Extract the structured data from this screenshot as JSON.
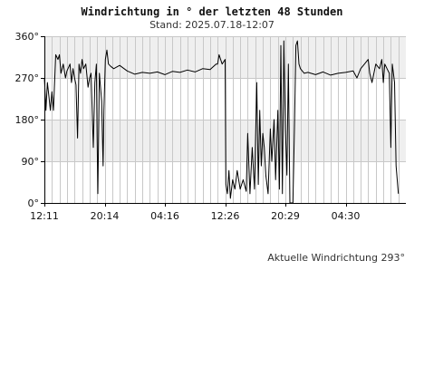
{
  "header": {
    "title": "Windrichtung in ° der letzten 48 Stunden",
    "subtitle": "Stand: 2025.07.18-12:07"
  },
  "footer": {
    "current_label": "Aktuelle Windrichtung 293°"
  },
  "colors": {
    "band": "#efefef",
    "grid": "#c8c8c8",
    "axis": "#000000",
    "line": "#000000",
    "background": "#ffffff"
  },
  "chart_data": {
    "type": "line",
    "title": "Windrichtung in ° der letzten 48 Stunden",
    "xlabel": "",
    "ylabel": "",
    "xlim": [
      0,
      48
    ],
    "ylim": [
      0,
      360
    ],
    "grid": true,
    "y_ticks": [
      {
        "value": 0,
        "label": "0°"
      },
      {
        "value": 90,
        "label": "90°"
      },
      {
        "value": 180,
        "label": "180°"
      },
      {
        "value": 270,
        "label": "270°"
      },
      {
        "value": 360,
        "label": "360°"
      }
    ],
    "x_ticks": [
      {
        "value": 0,
        "label": "12:11"
      },
      {
        "value": 8,
        "label": "20:14"
      },
      {
        "value": 16,
        "label": "04:16"
      },
      {
        "value": 24,
        "label": "12:26"
      },
      {
        "value": 32,
        "label": "20:29"
      },
      {
        "value": 40,
        "label": "04:30"
      }
    ],
    "series": [
      {
        "values": [
          [
            0.0,
            270
          ],
          [
            0.2,
            200
          ],
          [
            0.4,
            260
          ],
          [
            0.6,
            230
          ],
          [
            0.8,
            200
          ],
          [
            1.0,
            240
          ],
          [
            1.2,
            200
          ],
          [
            1.5,
            320
          ],
          [
            1.8,
            310
          ],
          [
            2.0,
            320
          ],
          [
            2.2,
            280
          ],
          [
            2.5,
            300
          ],
          [
            2.8,
            270
          ],
          [
            3.0,
            285
          ],
          [
            3.4,
            300
          ],
          [
            3.6,
            260
          ],
          [
            3.8,
            290
          ],
          [
            4.0,
            270
          ],
          [
            4.2,
            255
          ],
          [
            4.4,
            140
          ],
          [
            4.6,
            300
          ],
          [
            4.8,
            280
          ],
          [
            5.0,
            310
          ],
          [
            5.2,
            290
          ],
          [
            5.5,
            300
          ],
          [
            5.8,
            250
          ],
          [
            6.0,
            270
          ],
          [
            6.2,
            280
          ],
          [
            6.5,
            120
          ],
          [
            6.7,
            260
          ],
          [
            6.9,
            300
          ],
          [
            7.0,
            140
          ],
          [
            7.1,
            20
          ],
          [
            7.3,
            280
          ],
          [
            7.6,
            220
          ],
          [
            7.8,
            80
          ],
          [
            7.9,
            200
          ],
          [
            8.1,
            310
          ],
          [
            8.3,
            330
          ],
          [
            8.5,
            300
          ],
          [
            8.8,
            295
          ],
          [
            9.2,
            290
          ],
          [
            10,
            297
          ],
          [
            11,
            285
          ],
          [
            12,
            278
          ],
          [
            13,
            282
          ],
          [
            14,
            280
          ],
          [
            15,
            283
          ],
          [
            16,
            277
          ],
          [
            17,
            284
          ],
          [
            18,
            282
          ],
          [
            19,
            287
          ],
          [
            20,
            283
          ],
          [
            21,
            290
          ],
          [
            22,
            288
          ],
          [
            22.8,
            300
          ],
          [
            23.0,
            300
          ],
          [
            23.2,
            320
          ],
          [
            23.6,
            300
          ],
          [
            24.0,
            310
          ],
          [
            24.1,
            40
          ],
          [
            24.3,
            20
          ],
          [
            24.5,
            70
          ],
          [
            24.7,
            10
          ],
          [
            25.0,
            50
          ],
          [
            25.3,
            30
          ],
          [
            25.6,
            70
          ],
          [
            26.0,
            30
          ],
          [
            26.4,
            50
          ],
          [
            26.8,
            25
          ],
          [
            27.0,
            150
          ],
          [
            27.3,
            20
          ],
          [
            27.6,
            120
          ],
          [
            27.9,
            30
          ],
          [
            28.2,
            260
          ],
          [
            28.4,
            40
          ],
          [
            28.6,
            200
          ],
          [
            28.8,
            80
          ],
          [
            29.0,
            150
          ],
          [
            29.2,
            120
          ],
          [
            29.4,
            60
          ],
          [
            29.7,
            20
          ],
          [
            30.0,
            160
          ],
          [
            30.2,
            90
          ],
          [
            30.5,
            180
          ],
          [
            30.7,
            50
          ],
          [
            31.0,
            200
          ],
          [
            31.2,
            30
          ],
          [
            31.4,
            340
          ],
          [
            31.6,
            20
          ],
          [
            31.8,
            350
          ],
          [
            32.0,
            160
          ],
          [
            32.2,
            60
          ],
          [
            32.4,
            300
          ],
          [
            32.6,
            0
          ],
          [
            33.0,
            0
          ],
          [
            33.2,
            160
          ],
          [
            33.4,
            340
          ],
          [
            33.6,
            350
          ],
          [
            33.8,
            300
          ],
          [
            34.0,
            290
          ],
          [
            34.5,
            280
          ],
          [
            35,
            282
          ],
          [
            36,
            277
          ],
          [
            37,
            283
          ],
          [
            38,
            276
          ],
          [
            39,
            280
          ],
          [
            40,
            282
          ],
          [
            41,
            285
          ],
          [
            41.5,
            270
          ],
          [
            42,
            290
          ],
          [
            42.5,
            300
          ],
          [
            43,
            310
          ],
          [
            43.2,
            280
          ],
          [
            43.5,
            260
          ],
          [
            44,
            300
          ],
          [
            44.5,
            290
          ],
          [
            44.8,
            310
          ],
          [
            45.0,
            260
          ],
          [
            45.2,
            300
          ],
          [
            45.5,
            290
          ],
          [
            45.8,
            280
          ],
          [
            46.0,
            120
          ],
          [
            46.2,
            300
          ],
          [
            46.5,
            260
          ],
          [
            46.7,
            80
          ],
          [
            47.0,
            20
          ]
        ]
      }
    ]
  }
}
